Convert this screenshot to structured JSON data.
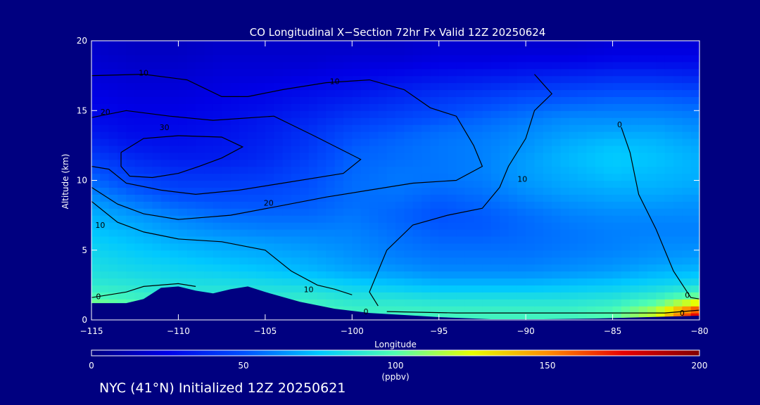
{
  "footer": "NYC (41°N) Initialized 12Z 20250621",
  "chart_data": {
    "type": "heatmap",
    "title": "CO Longitudinal X−Section 72hr  Fx Valid 12Z 20250624",
    "xlabel": "Longitude",
    "ylabel": "Altitude (km)",
    "xlim": [
      -115,
      -80
    ],
    "ylim": [
      0,
      20
    ],
    "xticks": [
      -115,
      -110,
      -105,
      -100,
      -95,
      -90,
      -85,
      -80
    ],
    "xtick_labels": [
      "−115",
      "−110",
      "−105",
      "−100",
      "−95",
      "−90",
      "−85",
      "−80"
    ],
    "yticks": [
      0,
      5,
      10,
      15,
      20
    ],
    "ytick_labels": [
      "0",
      "5",
      "10",
      "15",
      "20"
    ],
    "colorbar": {
      "label": "(ppbv)",
      "min": 0,
      "max": 200,
      "ticks": [
        0,
        50,
        100,
        150,
        200
      ],
      "tick_labels": [
        "0",
        "50",
        "100",
        "150",
        "200"
      ],
      "colors": [
        "#000080",
        "#0000e6",
        "#0050ff",
        "#00c8ff",
        "#50ffb0",
        "#e6ff00",
        "#ff8c00",
        "#e60000",
        "#800000"
      ]
    },
    "lon": [
      -115,
      -112.5,
      -110,
      -107.5,
      -105,
      -102.5,
      -100,
      -97.5,
      -95,
      -92.5,
      -90,
      -87.5,
      -85,
      -82.5,
      -80
    ],
    "alt": [
      0.5,
      1.5,
      2.5,
      3.5,
      4.5,
      5.5,
      6.5,
      7.5,
      8.5,
      9.5,
      10.5,
      11.5,
      12.5,
      13.5,
      14.5,
      15.5,
      16.5,
      17.5,
      18.5,
      19.5
    ],
    "values_ppbv": [
      [
        120,
        110,
        100,
        100,
        105,
        100,
        95,
        95,
        95,
        95,
        95,
        95,
        100,
        120,
        180
      ],
      [
        100,
        95,
        92,
        92,
        90,
        92,
        88,
        88,
        86,
        86,
        86,
        86,
        88,
        95,
        110
      ],
      [
        90,
        88,
        85,
        85,
        84,
        82,
        78,
        75,
        72,
        72,
        72,
        74,
        76,
        80,
        84
      ],
      [
        85,
        82,
        80,
        78,
        75,
        72,
        68,
        65,
        62,
        62,
        62,
        64,
        66,
        70,
        72
      ],
      [
        82,
        78,
        75,
        72,
        70,
        68,
        64,
        60,
        58,
        58,
        58,
        60,
        62,
        64,
        66
      ],
      [
        78,
        74,
        70,
        68,
        66,
        64,
        62,
        58,
        55,
        55,
        56,
        58,
        60,
        62,
        62
      ],
      [
        74,
        70,
        65,
        62,
        60,
        60,
        60,
        56,
        52,
        52,
        55,
        58,
        60,
        60,
        60
      ],
      [
        70,
        65,
        60,
        56,
        55,
        55,
        58,
        54,
        50,
        52,
        56,
        60,
        62,
        62,
        62
      ],
      [
        65,
        58,
        52,
        50,
        50,
        52,
        56,
        56,
        52,
        55,
        60,
        64,
        66,
        66,
        64
      ],
      [
        58,
        50,
        45,
        45,
        46,
        50,
        56,
        58,
        56,
        58,
        64,
        68,
        70,
        70,
        68
      ],
      [
        52,
        44,
        40,
        40,
        42,
        48,
        55,
        58,
        58,
        60,
        66,
        70,
        74,
        72,
        70
      ],
      [
        45,
        38,
        34,
        34,
        38,
        45,
        54,
        56,
        58,
        60,
        66,
        72,
        76,
        74,
        70
      ],
      [
        38,
        32,
        30,
        32,
        36,
        42,
        52,
        55,
        58,
        60,
        64,
        70,
        74,
        72,
        68
      ],
      [
        32,
        28,
        28,
        30,
        34,
        40,
        48,
        52,
        56,
        58,
        62,
        66,
        68,
        68,
        64
      ],
      [
        28,
        26,
        26,
        28,
        32,
        36,
        42,
        46,
        50,
        54,
        58,
        62,
        62,
        62,
        60
      ],
      [
        26,
        24,
        24,
        26,
        28,
        32,
        36,
        40,
        44,
        48,
        52,
        54,
        56,
        56,
        54
      ],
      [
        24,
        22,
        22,
        24,
        26,
        28,
        30,
        34,
        38,
        40,
        44,
        46,
        48,
        48,
        46
      ],
      [
        22,
        20,
        20,
        22,
        22,
        24,
        26,
        28,
        30,
        32,
        34,
        36,
        38,
        38,
        36
      ],
      [
        20,
        18,
        18,
        20,
        20,
        20,
        22,
        22,
        24,
        24,
        26,
        26,
        28,
        28,
        28
      ],
      [
        18,
        16,
        16,
        18,
        18,
        18,
        18,
        18,
        20,
        20,
        20,
        20,
        22,
        22,
        22
      ]
    ],
    "terrain_km": [
      [
        -115,
        1.2
      ],
      [
        -113,
        1.2
      ],
      [
        -112,
        1.5
      ],
      [
        -111,
        2.3
      ],
      [
        -110,
        2.4
      ],
      [
        -109,
        2.1
      ],
      [
        -108,
        1.9
      ],
      [
        -107,
        2.2
      ],
      [
        -106,
        2.4
      ],
      [
        -105,
        2.0
      ],
      [
        -103,
        1.3
      ],
      [
        -101,
        0.8
      ],
      [
        -99,
        0.5
      ],
      [
        -97,
        0.35
      ],
      [
        -95,
        0.2
      ],
      [
        -92,
        0.05
      ],
      [
        -89,
        0.05
      ],
      [
        -86,
        0.1
      ],
      [
        -83,
        0.2
      ],
      [
        -80,
        0.3
      ]
    ],
    "contours": [
      {
        "level": 30,
        "points": [
          [
            -113.3,
            12.0
          ],
          [
            -112.0,
            13.0
          ],
          [
            -110.0,
            13.2
          ],
          [
            -107.5,
            13.1
          ],
          [
            -106.3,
            12.4
          ],
          [
            -107.5,
            11.6
          ],
          [
            -108.8,
            11.0
          ],
          [
            -110.0,
            10.5
          ],
          [
            -111.5,
            10.2
          ],
          [
            -112.8,
            10.3
          ],
          [
            -113.3,
            11.0
          ],
          [
            -113.3,
            12.0
          ]
        ]
      },
      {
        "level": 20,
        "points": [
          [
            -115.0,
            14.5
          ],
          [
            -113.0,
            15.0
          ],
          [
            -110.5,
            14.6
          ],
          [
            -108.0,
            14.3
          ],
          [
            -104.5,
            14.6
          ],
          [
            -102.2,
            13.2
          ],
          [
            -99.5,
            11.5
          ],
          [
            -100.5,
            10.5
          ],
          [
            -104.0,
            9.8
          ],
          [
            -106.5,
            9.3
          ],
          [
            -109.0,
            9.0
          ],
          [
            -111.0,
            9.3
          ],
          [
            -113.0,
            9.8
          ],
          [
            -114.0,
            10.8
          ],
          [
            -115.0,
            11.0
          ]
        ]
      },
      {
        "level": 10,
        "points": [
          [
            -115.0,
            17.5
          ],
          [
            -112.0,
            17.6
          ],
          [
            -109.5,
            17.2
          ],
          [
            -107.5,
            16.0
          ],
          [
            -106.0,
            16.0
          ],
          [
            -104.0,
            16.5
          ],
          [
            -101.5,
            17.0
          ],
          [
            -99.0,
            17.2
          ],
          [
            -97.0,
            16.5
          ],
          [
            -95.5,
            15.2
          ],
          [
            -94.0,
            14.6
          ],
          [
            -93.0,
            12.5
          ],
          [
            -92.5,
            11.0
          ],
          [
            -94.0,
            10.0
          ],
          [
            -96.5,
            9.8
          ],
          [
            -99.0,
            9.3
          ],
          [
            -101.5,
            8.8
          ],
          [
            -104.0,
            8.2
          ],
          [
            -107.0,
            7.5
          ],
          [
            -110.0,
            7.2
          ],
          [
            -112.0,
            7.6
          ],
          [
            -113.5,
            8.3
          ],
          [
            -115.0,
            9.5
          ]
        ]
      },
      {
        "level": 10,
        "points": [
          [
            -115.0,
            8.5
          ],
          [
            -113.5,
            7.0
          ],
          [
            -112.0,
            6.3
          ],
          [
            -110.0,
            5.8
          ],
          [
            -107.5,
            5.6
          ],
          [
            -105.0,
            5.0
          ],
          [
            -103.5,
            3.5
          ],
          [
            -102.0,
            2.5
          ],
          [
            -101.0,
            2.2
          ],
          [
            -100.0,
            1.8
          ]
        ]
      },
      {
        "level": 10,
        "points": [
          [
            -89.5,
            17.6
          ],
          [
            -88.5,
            16.2
          ],
          [
            -89.5,
            15.0
          ],
          [
            -90.0,
            13.0
          ],
          [
            -91.0,
            11.0
          ],
          [
            -91.5,
            9.5
          ],
          [
            -92.5,
            8.0
          ],
          [
            -94.5,
            7.5
          ],
          [
            -96.5,
            6.8
          ],
          [
            -98.0,
            5.0
          ],
          [
            -99.0,
            2.0
          ],
          [
            -98.5,
            1.0
          ]
        ]
      },
      {
        "level": 0,
        "points": [
          [
            -115.0,
            1.6
          ],
          [
            -114.0,
            1.8
          ],
          [
            -113.0,
            2.0
          ],
          [
            -112.0,
            2.4
          ],
          [
            -111.0,
            2.5
          ],
          [
            -110.0,
            2.6
          ],
          [
            -109.0,
            2.4
          ]
        ]
      },
      {
        "level": 0,
        "points": [
          [
            -84.5,
            13.8
          ],
          [
            -84.0,
            12.0
          ],
          [
            -83.5,
            9.0
          ],
          [
            -82.5,
            6.5
          ],
          [
            -81.5,
            3.5
          ],
          [
            -80.5,
            1.6
          ],
          [
            -80.0,
            1.5
          ]
        ]
      },
      {
        "level": 0,
        "points": [
          [
            -98.0,
            0.6
          ],
          [
            -94.0,
            0.5
          ],
          [
            -90.0,
            0.5
          ],
          [
            -86.0,
            0.5
          ],
          [
            -82.0,
            0.5
          ],
          [
            -80.0,
            0.7
          ]
        ]
      }
    ],
    "contour_labels": [
      {
        "text": "30",
        "x": -110.8,
        "y": 13.8
      },
      {
        "text": "20",
        "x": -114.2,
        "y": 14.9
      },
      {
        "text": "20",
        "x": -104.8,
        "y": 8.4
      },
      {
        "text": "10",
        "x": -112.0,
        "y": 17.7
      },
      {
        "text": "10",
        "x": -101.0,
        "y": 17.1
      },
      {
        "text": "10",
        "x": -114.5,
        "y": 6.8
      },
      {
        "text": "10",
        "x": -102.5,
        "y": 2.2
      },
      {
        "text": "10",
        "x": -90.2,
        "y": 10.1
      },
      {
        "text": "0",
        "x": -84.6,
        "y": 14.0
      },
      {
        "text": "0",
        "x": -114.6,
        "y": 1.7
      },
      {
        "text": "0",
        "x": -99.2,
        "y": 0.6
      },
      {
        "text": "0",
        "x": -80.7,
        "y": 1.8
      },
      {
        "text": "0",
        "x": -81.0,
        "y": 0.5
      }
    ]
  }
}
